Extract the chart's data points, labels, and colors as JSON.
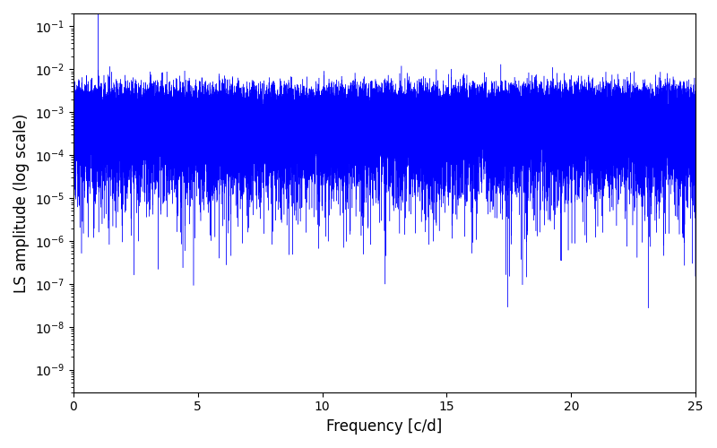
{
  "xlabel": "Frequency [c/d]",
  "ylabel": "LS amplitude (log scale)",
  "xlim": [
    0,
    25
  ],
  "ylim": [
    3e-10,
    0.2
  ],
  "line_color": "blue",
  "background_color": "#ffffff",
  "freq_max": 25.0,
  "n_points": 50000,
  "noise_seed": 12345
}
